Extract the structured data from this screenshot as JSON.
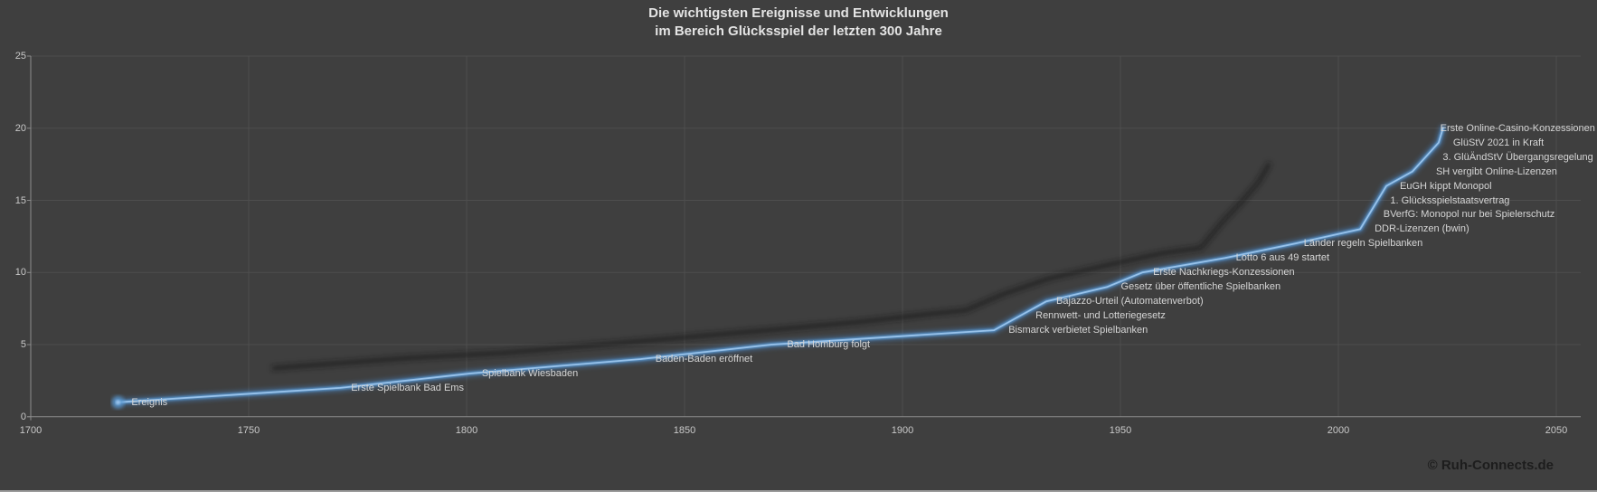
{
  "title": {
    "line1": "Die wichtigsten Ereignisse und Entwicklungen",
    "line2": "im Bereich Glücksspiel der letzten 300 Jahre"
  },
  "footer": {
    "copyright": "© Ruh-Connects.de"
  },
  "chart_data": {
    "type": "line",
    "series_name": "Ereignis",
    "title": "Die wichtigsten Ereignisse und Entwicklungen im Bereich Glücksspiel der letzten 300 Jahre",
    "xlabel": "",
    "ylabel": "",
    "x_axis": {
      "min": 1700,
      "max": 2050,
      "ticks": [
        1700,
        1750,
        1800,
        1850,
        1900,
        1950,
        2000,
        2050
      ]
    },
    "y_axis": {
      "min": 0,
      "max": 25,
      "ticks": [
        0,
        5,
        10,
        15,
        20,
        25
      ]
    },
    "grid": true,
    "legend": "none",
    "colors": {
      "background": "#3f3f3f",
      "line": "#5b9bd5",
      "line_glow": "#4a86c8",
      "line_core": "#9cc5ec",
      "shadow_line": "#181818",
      "gridline": "#4e4e4e",
      "axis": "#8c8c8c",
      "tick_text": "#c9c9c9",
      "label_text": "#d6d6d6",
      "title_text": "#e4e4e4",
      "copyright_text": "#1d1d1d"
    },
    "events": [
      {
        "label": "Ereignis",
        "year": 1720,
        "value": 1
      },
      {
        "label": "Erste Spielbank Bad Ems",
        "year": 1771,
        "value": 2
      },
      {
        "label": "Spielbank Wiesbaden",
        "year": 1801,
        "value": 3
      },
      {
        "label": "Baden-Baden eröffnet",
        "year": 1840,
        "value": 4
      },
      {
        "label": "Bad Homburg folgt",
        "year": 1870,
        "value": 5
      },
      {
        "label": "Bismarck verbietet Spielbanken",
        "year": 1921,
        "value": 6
      },
      {
        "label": "Rennwett- und Lotteriegesetz",
        "year": 1927,
        "value": 7
      },
      {
        "label": "Bajazzo-Urteil (Automatenverbot)",
        "year": 1933,
        "value": 8
      },
      {
        "label": "Gesetz über öffentliche Spielbanken",
        "year": 1947,
        "value": 9
      },
      {
        "label": "Erste Nachkriegs-Konzessionen",
        "year": 1955,
        "value": 10
      },
      {
        "label": "Lotto 6 aus 49 startet",
        "year": 1974,
        "value": 11
      },
      {
        "label": "Länder regeln Spielbanken",
        "year": 1990,
        "value": 12
      },
      {
        "label": "DDR-Lizenzen (bwin)",
        "year": 2005,
        "value": 13
      },
      {
        "label": "BVerfG: Monopol nur bei Spielerschutz",
        "year": 2007,
        "value": 14
      },
      {
        "label": "1. Glücksspielstaatsvertrag",
        "year": 2009,
        "value": 15
      },
      {
        "label": "EuGH kippt Monopol",
        "year": 2011,
        "value": 16
      },
      {
        "label": "SH vergibt Online-Lizenzen",
        "year": 2017,
        "value": 17
      },
      {
        "label": "3. GlüÄndStV Übergangsregelung",
        "year": 2020,
        "value": 18
      },
      {
        "label": "GlüStV 2021 in Kraft",
        "year": 2023,
        "value": 19
      },
      {
        "label": "Erste Online-Casino-Konzessionen",
        "year": 2024,
        "value": 20
      }
    ]
  }
}
